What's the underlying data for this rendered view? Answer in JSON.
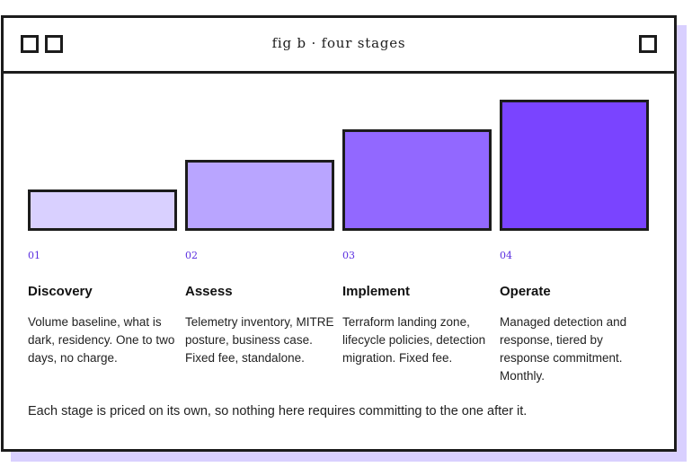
{
  "window": {
    "title": "fig b · four stages"
  },
  "stages": [
    {
      "num": "01",
      "name": "Discovery",
      "desc": "Volume baseline, what is dark, residency. One to two days, no charge.",
      "level": 1,
      "color": "#d9d0ff"
    },
    {
      "num": "02",
      "name": "Assess",
      "desc": "Telemetry inventory, MITRE posture, business case. Fixed fee, standalone.",
      "level": 2,
      "color": "#b9a5ff"
    },
    {
      "num": "03",
      "name": "Implement",
      "desc": "Terraform landing zone, lifecycle policies, detection migration. Fixed fee.",
      "level": 3,
      "color": "#9268ff"
    },
    {
      "num": "04",
      "name": "Operate",
      "desc": "Managed detection and response, tiered by response commitment. Monthly.",
      "level": 4,
      "color": "#7a44ff"
    }
  ],
  "footer": "Each stage is priced on its own, so nothing here requires committing to the one after it."
}
